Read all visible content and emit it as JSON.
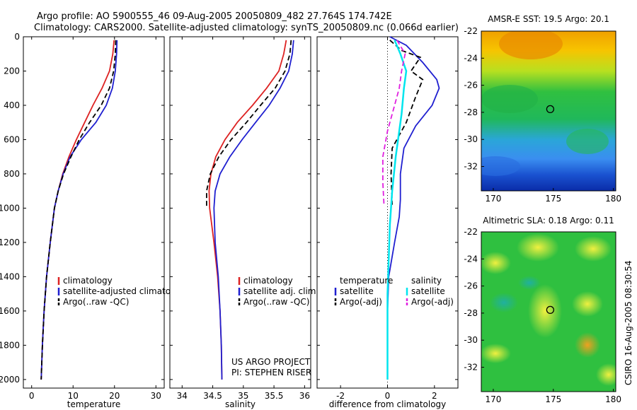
{
  "header": {
    "line1": "Argo profile: AO 5900555_46 09-Aug-2005 20050809_482 27.764S 174.742E",
    "line2": "Climatology: CARS2000. Satellite-adjusted climatology: synTS_20050809.nc (0.066d earlier)"
  },
  "credits": {
    "project": "US ARGO PROJECT",
    "pi": "PI: STEPHEN RISER",
    "side": "CSIRO 16-Aug-2005 08:30:54"
  },
  "colors": {
    "climatology": "#dd2222",
    "satellite": "#1f1fd0",
    "argo": "#000000",
    "satellite_salinity": "#00e5ee",
    "argo_salinity": "#e020e0"
  },
  "chart_data": [
    {
      "type": "line",
      "xlabel": "temperature",
      "ylabel": "",
      "xlim": [
        -2,
        32
      ],
      "ylim": [
        2050,
        0
      ],
      "xticks": [
        0,
        10,
        20,
        30
      ],
      "yticks": [
        0,
        200,
        400,
        600,
        800,
        1000,
        1200,
        1400,
        1600,
        1800,
        2000
      ],
      "legend": [
        "climatology",
        "satellite-adjusted climatology",
        "Argo(..raw -QC)"
      ],
      "series": [
        {
          "name": "climatology",
          "style": "solid",
          "color_key": "climatology",
          "x": [
            19.9,
            19.6,
            18.8,
            17.0,
            14.8,
            12.8,
            10.8,
            9.0,
            7.5,
            6.4,
            5.5,
            4.5,
            3.6,
            3.0,
            2.6,
            2.3
          ],
          "y": [
            20,
            100,
            200,
            300,
            400,
            500,
            600,
            700,
            800,
            900,
            1000,
            1200,
            1400,
            1600,
            1800,
            2000
          ]
        },
        {
          "name": "satellite-adjusted climatology",
          "style": "solid",
          "color_key": "satellite",
          "x": [
            20.6,
            20.5,
            20.2,
            19.5,
            18.0,
            15.5,
            12.0,
            9.3,
            7.6,
            6.4,
            5.5,
            4.5,
            3.6,
            3.0,
            2.6,
            2.3
          ],
          "y": [
            20,
            100,
            200,
            300,
            400,
            500,
            600,
            700,
            800,
            900,
            1000,
            1200,
            1400,
            1600,
            1800,
            2000
          ]
        },
        {
          "name": "Argo(..raw -QC)",
          "style": "dashed",
          "color_key": "argo",
          "x": [
            20.3,
            20.2,
            19.8,
            18.8,
            16.8,
            14.0,
            11.5,
            9.5,
            7.7,
            6.4,
            5.5,
            4.5,
            3.6,
            3.0,
            2.6,
            2.3
          ],
          "y": [
            20,
            100,
            200,
            300,
            400,
            500,
            600,
            700,
            800,
            900,
            1000,
            1200,
            1400,
            1600,
            1800,
            2000
          ]
        }
      ]
    },
    {
      "type": "line",
      "xlabel": "salinity",
      "ylabel": "",
      "xlim": [
        33.8,
        36.1
      ],
      "ylim": [
        2050,
        0
      ],
      "xticks": [
        34,
        34.5,
        35,
        35.5,
        36
      ],
      "yticks": [
        0,
        200,
        400,
        600,
        800,
        1000,
        1200,
        1400,
        1600,
        1800,
        2000
      ],
      "legend": [
        "climatology",
        "satellite adj. clim.",
        "Argo(..raw -QC)"
      ],
      "series": [
        {
          "name": "climatology",
          "style": "solid",
          "color_key": "climatology",
          "x": [
            35.7,
            35.66,
            35.58,
            35.38,
            35.15,
            34.9,
            34.7,
            34.55,
            34.47,
            34.44,
            34.45,
            34.52,
            34.58,
            34.62,
            34.64,
            34.65
          ],
          "y": [
            20,
            100,
            200,
            300,
            400,
            500,
            600,
            700,
            800,
            900,
            1000,
            1200,
            1400,
            1600,
            1800,
            2000
          ]
        },
        {
          "name": "satellite adj. clim.",
          "style": "solid",
          "color_key": "satellite",
          "x": [
            35.82,
            35.8,
            35.74,
            35.6,
            35.42,
            35.2,
            34.98,
            34.78,
            34.62,
            34.54,
            34.52,
            34.54,
            34.59,
            34.62,
            34.64,
            34.65
          ],
          "y": [
            20,
            100,
            200,
            300,
            400,
            500,
            600,
            700,
            800,
            900,
            1000,
            1200,
            1400,
            1600,
            1800,
            2000
          ]
        },
        {
          "name": "Argo(..raw -QC)",
          "style": "dashed",
          "color_key": "argo",
          "x": [
            35.78,
            35.76,
            35.68,
            35.52,
            35.28,
            35.05,
            34.8,
            34.6,
            34.46,
            34.4,
            34.4
          ],
          "y": [
            20,
            100,
            200,
            300,
            400,
            500,
            600,
            700,
            800,
            900,
            1000
          ]
        }
      ]
    },
    {
      "type": "line",
      "xlabel": "difference from climatology",
      "ylabel": "",
      "xlim": [
        -3,
        3
      ],
      "ylim": [
        2050,
        0
      ],
      "xticks": [
        -2,
        0,
        2
      ],
      "yticks": [
        0,
        200,
        400,
        600,
        800,
        1000,
        1200,
        1400,
        1600,
        1800,
        2000
      ],
      "legend": [
        "temperature",
        "satellite",
        "Argo(-adj)",
        "salinity",
        "satellite",
        "Argo(-adj)"
      ],
      "series": [
        {
          "name": "temperature satellite",
          "style": "solid",
          "color_key": "satellite",
          "x": [
            0.1,
            0.8,
            1.5,
            2.1,
            2.2,
            1.9,
            1.2,
            0.7,
            0.55,
            0.55,
            0.5,
            0.3,
            0.05,
            0.0,
            0.0,
            0.0
          ],
          "y": [
            0,
            50,
            150,
            250,
            300,
            400,
            520,
            650,
            800,
            950,
            1050,
            1200,
            1400,
            1600,
            1800,
            2000
          ]
        },
        {
          "name": "temperature Argo(-adj)",
          "style": "dashed",
          "color_key": "argo",
          "x": [
            0.1,
            0.6,
            1.4,
            1.0,
            1.5,
            1.2,
            0.8,
            0.2,
            0.15,
            0.2
          ],
          "y": [
            20,
            80,
            120,
            200,
            250,
            350,
            500,
            650,
            800,
            980
          ]
        },
        {
          "name": "salinity satellite",
          "style": "solid",
          "color_key": "satellite_salinity",
          "x": [
            0.3,
            0.55,
            0.8,
            0.7,
            0.6,
            0.35,
            0.2,
            0.1,
            0.05,
            0.0,
            0.0,
            0.0
          ],
          "y": [
            20,
            100,
            200,
            300,
            450,
            700,
            900,
            1100,
            1300,
            1500,
            1800,
            2000
          ]
        },
        {
          "name": "salinity Argo(-adj)",
          "style": "dashed",
          "color_key": "argo_salinity",
          "x": [
            0.4,
            0.75,
            0.6,
            0.5,
            0.3,
            0.0,
            -0.2,
            -0.2,
            -0.15
          ],
          "y": [
            20,
            100,
            200,
            300,
            400,
            550,
            700,
            850,
            980
          ]
        }
      ]
    },
    {
      "type": "heatmap",
      "title": "AMSR-E SST: 19.5 Argo: 20.1",
      "xlim": [
        169,
        180.2
      ],
      "ylim": [
        -33.8,
        -22
      ],
      "xticks": [
        170,
        175,
        180
      ],
      "yticks": [
        -22,
        -24,
        -26,
        -28,
        -30,
        -32
      ],
      "marker": {
        "x": 174.742,
        "y": -27.764
      }
    },
    {
      "type": "heatmap",
      "title": "Altimetric SLA: 0.18 Argo: 0.11",
      "xlim": [
        169,
        180.2
      ],
      "ylim": [
        -33.8,
        -22
      ],
      "xticks": [
        170,
        175,
        180
      ],
      "yticks": [
        -22,
        -24,
        -26,
        -28,
        -30,
        -32
      ],
      "marker": {
        "x": 174.742,
        "y": -27.764
      }
    }
  ]
}
